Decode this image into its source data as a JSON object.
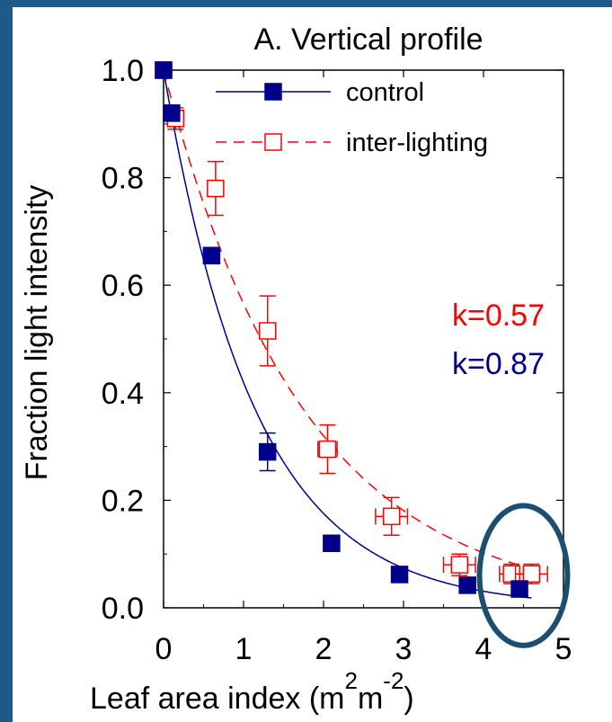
{
  "chart_data": {
    "type": "scatter",
    "title": "A. Vertical profile",
    "xlabel": "Leaf area index (m",
    "xlabel_sup1": "2",
    "xlabel_mid": "m",
    "xlabel_sup2": "-2",
    "xlabel_end": ")",
    "ylabel": "Fraction light intensity",
    "xlim": [
      0,
      5
    ],
    "ylim": [
      0,
      1.0
    ],
    "xticks": [
      "0",
      "1",
      "2",
      "3",
      "4",
      "5"
    ],
    "yticks": [
      "0.0",
      "0.2",
      "0.4",
      "0.6",
      "0.8",
      "1.0"
    ],
    "grid": false,
    "legend_position": "top-right",
    "series": [
      {
        "name": "control",
        "color": "#00008b",
        "marker": "filled-square",
        "line": "solid",
        "k": 0.87,
        "k_label": "k=0.87",
        "points": [
          {
            "x": 0.0,
            "y": 1.0,
            "yerr": 0.0,
            "xerr": 0.0
          },
          {
            "x": 0.1,
            "y": 0.92,
            "yerr": 0.01,
            "xerr": 0.0
          },
          {
            "x": 0.6,
            "y": 0.655,
            "yerr": 0.015,
            "xerr": 0.03
          },
          {
            "x": 1.3,
            "y": 0.29,
            "yerr": 0.035,
            "xerr": 0.03
          },
          {
            "x": 2.1,
            "y": 0.12,
            "yerr": 0.005,
            "xerr": 0.03
          },
          {
            "x": 2.95,
            "y": 0.062,
            "yerr": 0.005,
            "xerr": 0.03
          },
          {
            "x": 3.8,
            "y": 0.042,
            "yerr": 0.005,
            "xerr": 0.03
          },
          {
            "x": 4.45,
            "y": 0.035,
            "yerr": 0.005,
            "xerr": 0.03
          }
        ]
      },
      {
        "name": "inter-lighting",
        "color": "#ff0000",
        "marker": "open-square",
        "line": "dashed",
        "k": 0.57,
        "k_label": "k=0.57",
        "points": [
          {
            "x": 0.0,
            "y": 1.0,
            "yerr": 0.0,
            "xerr": 0.0
          },
          {
            "x": 0.15,
            "y": 0.91,
            "yerr": 0.02,
            "xerr": 0.07
          },
          {
            "x": 0.65,
            "y": 0.78,
            "yerr": 0.05,
            "xerr": 0.05
          },
          {
            "x": 1.3,
            "y": 0.515,
            "yerr": 0.065,
            "xerr": 0.1
          },
          {
            "x": 2.05,
            "y": 0.295,
            "yerr": 0.045,
            "xerr": 0.12
          },
          {
            "x": 2.85,
            "y": 0.17,
            "yerr": 0.035,
            "xerr": 0.2
          },
          {
            "x": 3.7,
            "y": 0.08,
            "yerr": 0.02,
            "xerr": 0.2
          },
          {
            "x": 4.35,
            "y": 0.063,
            "yerr": 0.018,
            "xerr": 0.15
          },
          {
            "x": 4.6,
            "y": 0.063,
            "yerr": 0.018,
            "xerr": 0.2
          }
        ]
      }
    ],
    "highlight": {
      "shape": "ellipse",
      "color": "#1c4e72",
      "cx": 4.5,
      "cy": 0.06,
      "rx": 0.55,
      "ry": 0.13
    }
  }
}
